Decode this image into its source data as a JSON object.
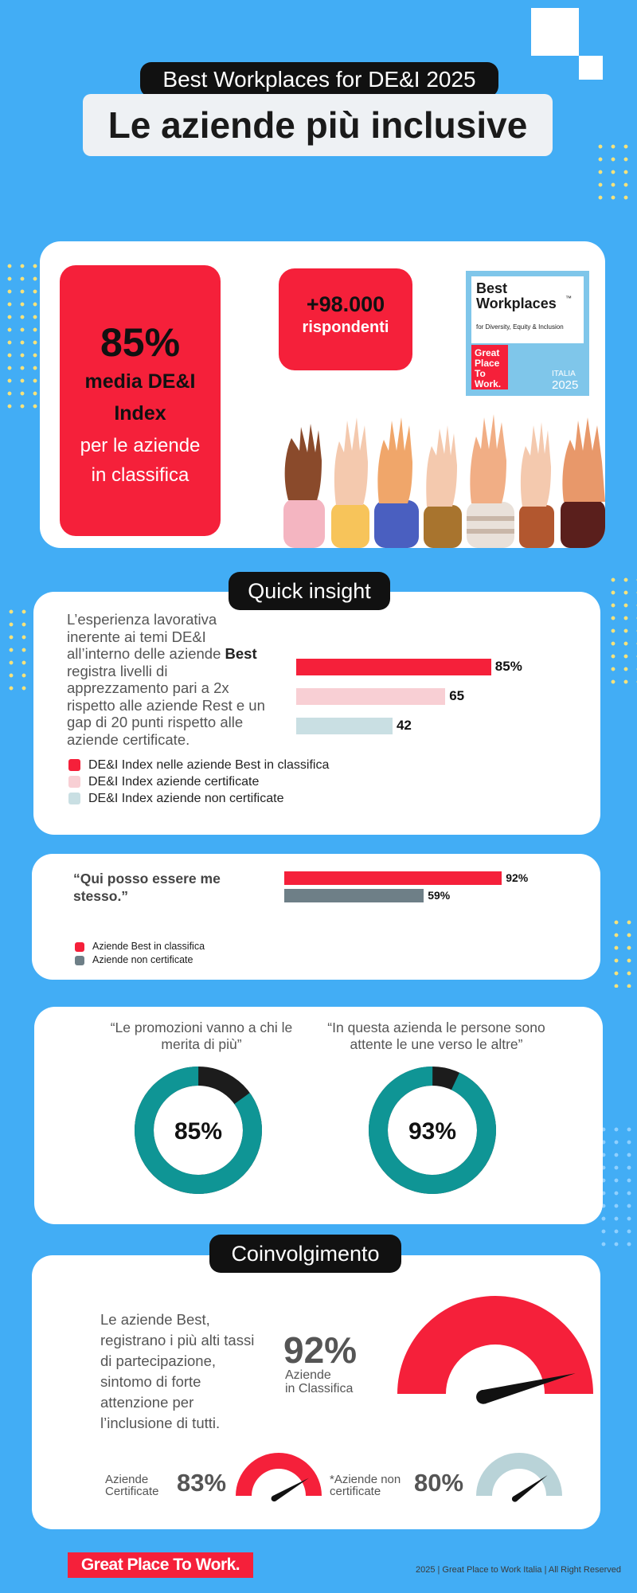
{
  "header": {
    "subtitle": "Best Workplaces for DE&I 2025",
    "title": "Le aziende più inclusive"
  },
  "hero": {
    "stat_value": "85%",
    "stat_bold": "media DE&I Index",
    "stat_text": "per le aziende in classifica",
    "respondents_value": "+98.000",
    "respondents_label": "rispondenti",
    "badge": {
      "line1": "Best",
      "line2": "Workplaces",
      "tm": "™",
      "sub": "for Diversity, Equity & Inclusion",
      "gptw": "Great Place To Work.",
      "country": "ITALIA",
      "year": "2025"
    }
  },
  "quick_insight": {
    "label": "Quick insight",
    "text_before": "L’esperienza lavorativa inerente ai temi DE&I all’interno delle aziende ",
    "text_bold": "Best",
    "text_after": " registra livelli di apprezzamento pari a 2x rispetto alle aziende Rest e un gap di 20 punti rispetto alle aziende certificate.",
    "bars": [
      {
        "label": "85%",
        "value": 85,
        "color": "#f5203a"
      },
      {
        "label": "65",
        "value": 65,
        "color": "#f8cfd4"
      },
      {
        "label": "42",
        "value": 42,
        "color": "#c9dfe3"
      }
    ],
    "legend": [
      {
        "text": "DE&I Index nelle aziende Best in classifica",
        "color": "#f5203a"
      },
      {
        "text": "DE&I Index aziende certificate",
        "color": "#f8cfd4"
      },
      {
        "text": "DE&I Index aziende non certificate",
        "color": "#c9dfe3"
      }
    ]
  },
  "quote_card": {
    "quote": "“Qui posso essere me stesso.”",
    "bars": [
      {
        "label": "92%",
        "value": 92,
        "color": "#f5203a"
      },
      {
        "label": "59%",
        "value": 59,
        "color": "#6e7f87"
      }
    ],
    "legend": [
      {
        "text": "Aziende Best in classifica",
        "color": "#f5203a"
      },
      {
        "text": "Aziende non certificate",
        "color": "#6e7f87"
      }
    ]
  },
  "donuts": [
    {
      "quote": "“Le promozioni vanno a chi le merita di più”",
      "value": 85,
      "label": "85%"
    },
    {
      "quote": "“In questa azienda le persone sono attente le une verso le altre”",
      "value": 93,
      "label": "93%"
    }
  ],
  "engagement": {
    "label": "Coinvolgimento",
    "text": "Le aziende Best, registrano i più alti tassi di partecipazione, sintomo di forte attenzione per l’inclusione di tutti.",
    "main_value": "92%",
    "main_label_1": "Aziende",
    "main_label_2": "in Classifica",
    "main_gauge": 92,
    "cert_label_1": "Aziende",
    "cert_label_2": "Certificate",
    "cert_value": "83%",
    "cert_gauge": 83,
    "noncert_label_1": "*Aziende non",
    "noncert_label_2": "certificate",
    "noncert_value": "80%",
    "noncert_gauge": 80
  },
  "footer": {
    "logo": "Great Place To Work.",
    "copyright": "2025 | Great Place to Work Italia | All Right Reserved"
  },
  "colors": {
    "red": "#f5203a",
    "teal": "#0f9595",
    "dark": "#1c1c1c",
    "background": "#42adf5"
  }
}
